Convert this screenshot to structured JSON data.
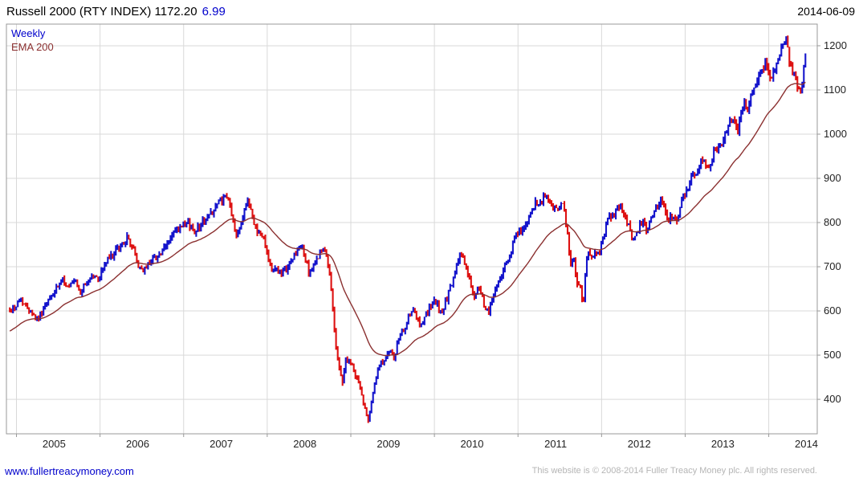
{
  "header": {
    "title": "Russell 2000 (RTY INDEX) 1172.20",
    "change": "6.99",
    "date": "2014-06-09"
  },
  "legend": {
    "timeframe": "Weekly",
    "overlay": "EMA 200"
  },
  "footer": {
    "link": "www.fullertreacymoney.com",
    "copyright": "This website is © 2008-2014 Fuller Treacy Money plc. All rights reserved."
  },
  "colors": {
    "up": "#1414cc",
    "down": "#dd1111",
    "ema": "#8b3030",
    "grid": "#d9d9d9",
    "border": "#999999",
    "text": "#222222",
    "accent_blue": "#0000cc",
    "copyright_gray": "#b5b5b5"
  },
  "chart_data": {
    "type": "candlestick",
    "title": "Russell 2000 (RTY INDEX)",
    "last": 1172.2,
    "change": 6.99,
    "as_of": "2014-06-09",
    "timeframe": "Weekly",
    "overlay": "EMA 200",
    "x_ticks": [
      2005,
      2006,
      2007,
      2008,
      2009,
      2010,
      2011,
      2012,
      2013,
      2014
    ],
    "x_label_offset": 0.45,
    "y_ticks": [
      400,
      500,
      600,
      700,
      800,
      900,
      1000,
      1100,
      1200
    ],
    "xlim": [
      2004.88,
      2014.58
    ],
    "ylim": [
      322,
      1249
    ],
    "t_start": 2004.92,
    "t_end": 2014.45,
    "grid": true,
    "legend_position": "top-left",
    "anchors": [
      [
        2004.92,
        600
      ],
      [
        2005.0,
        612
      ],
      [
        2005.06,
        630
      ],
      [
        2005.1,
        612
      ],
      [
        2005.18,
        600
      ],
      [
        2005.25,
        580
      ],
      [
        2005.32,
        602
      ],
      [
        2005.4,
        628
      ],
      [
        2005.48,
        648
      ],
      [
        2005.56,
        672
      ],
      [
        2005.62,
        650
      ],
      [
        2005.7,
        668
      ],
      [
        2005.76,
        638
      ],
      [
        2005.83,
        662
      ],
      [
        2005.9,
        680
      ],
      [
        2005.98,
        672
      ],
      [
        2006.04,
        700
      ],
      [
        2006.1,
        718
      ],
      [
        2006.17,
        730
      ],
      [
        2006.25,
        748
      ],
      [
        2006.33,
        765
      ],
      [
        2006.4,
        738
      ],
      [
        2006.46,
        700
      ],
      [
        2006.54,
        692
      ],
      [
        2006.6,
        715
      ],
      [
        2006.67,
        722
      ],
      [
        2006.75,
        732
      ],
      [
        2006.83,
        762
      ],
      [
        2006.9,
        780
      ],
      [
        2006.98,
        788
      ],
      [
        2007.06,
        800
      ],
      [
        2007.12,
        780
      ],
      [
        2007.2,
        795
      ],
      [
        2007.28,
        810
      ],
      [
        2007.36,
        832
      ],
      [
        2007.44,
        848
      ],
      [
        2007.52,
        855
      ],
      [
        2007.58,
        820
      ],
      [
        2007.62,
        768
      ],
      [
        2007.68,
        795
      ],
      [
        2007.74,
        838
      ],
      [
        2007.79,
        845
      ],
      [
        2007.84,
        800
      ],
      [
        2007.9,
        775
      ],
      [
        2007.96,
        766
      ],
      [
        2008.02,
        718
      ],
      [
        2008.06,
        688
      ],
      [
        2008.12,
        700
      ],
      [
        2008.17,
        678
      ],
      [
        2008.25,
        700
      ],
      [
        2008.33,
        730
      ],
      [
        2008.42,
        742
      ],
      [
        2008.5,
        688
      ],
      [
        2008.56,
        700
      ],
      [
        2008.62,
        730
      ],
      [
        2008.67,
        740
      ],
      [
        2008.71,
        718
      ],
      [
        2008.75,
        680
      ],
      [
        2008.79,
        600
      ],
      [
        2008.82,
        520
      ],
      [
        2008.86,
        470
      ],
      [
        2008.9,
        440
      ],
      [
        2008.94,
        490
      ],
      [
        2009.0,
        480
      ],
      [
        2009.04,
        462
      ],
      [
        2009.09,
        440
      ],
      [
        2009.13,
        410
      ],
      [
        2009.17,
        380
      ],
      [
        2009.21,
        355
      ],
      [
        2009.25,
        400
      ],
      [
        2009.29,
        438
      ],
      [
        2009.33,
        468
      ],
      [
        2009.38,
        486
      ],
      [
        2009.42,
        500
      ],
      [
        2009.48,
        506
      ],
      [
        2009.52,
        488
      ],
      [
        2009.56,
        528
      ],
      [
        2009.62,
        555
      ],
      [
        2009.67,
        572
      ],
      [
        2009.71,
        592
      ],
      [
        2009.75,
        602
      ],
      [
        2009.79,
        580
      ],
      [
        2009.83,
        568
      ],
      [
        2009.88,
        588
      ],
      [
        2009.94,
        604
      ],
      [
        2010.0,
        622
      ],
      [
        2010.04,
        612
      ],
      [
        2010.08,
        595
      ],
      [
        2010.15,
        628
      ],
      [
        2010.21,
        660
      ],
      [
        2010.27,
        700
      ],
      [
        2010.31,
        738
      ],
      [
        2010.35,
        718
      ],
      [
        2010.4,
        680
      ],
      [
        2010.44,
        662
      ],
      [
        2010.48,
        622
      ],
      [
        2010.52,
        650
      ],
      [
        2010.56,
        638
      ],
      [
        2010.6,
        608
      ],
      [
        2010.65,
        598
      ],
      [
        2010.69,
        628
      ],
      [
        2010.73,
        648
      ],
      [
        2010.77,
        672
      ],
      [
        2010.83,
        692
      ],
      [
        2010.88,
        718
      ],
      [
        2010.94,
        748
      ],
      [
        2011.0,
        782
      ],
      [
        2011.04,
        772
      ],
      [
        2011.1,
        800
      ],
      [
        2011.16,
        818
      ],
      [
        2011.21,
        842
      ],
      [
        2011.25,
        832
      ],
      [
        2011.29,
        848
      ],
      [
        2011.33,
        862
      ],
      [
        2011.4,
        838
      ],
      [
        2011.46,
        828
      ],
      [
        2011.52,
        842
      ],
      [
        2011.56,
        820
      ],
      [
        2011.6,
        758
      ],
      [
        2011.63,
        700
      ],
      [
        2011.67,
        712
      ],
      [
        2011.71,
        662
      ],
      [
        2011.75,
        648
      ],
      [
        2011.78,
        608
      ],
      [
        2011.82,
        712
      ],
      [
        2011.85,
        740
      ],
      [
        2011.88,
        718
      ],
      [
        2011.92,
        738
      ],
      [
        2011.96,
        728
      ],
      [
        2012.02,
        762
      ],
      [
        2012.06,
        798
      ],
      [
        2012.1,
        812
      ],
      [
        2012.15,
        822
      ],
      [
        2012.19,
        845
      ],
      [
        2012.23,
        832
      ],
      [
        2012.27,
        818
      ],
      [
        2012.33,
        792
      ],
      [
        2012.37,
        762
      ],
      [
        2012.42,
        775
      ],
      [
        2012.46,
        792
      ],
      [
        2012.5,
        800
      ],
      [
        2012.54,
        778
      ],
      [
        2012.58,
        808
      ],
      [
        2012.63,
        822
      ],
      [
        2012.67,
        838
      ],
      [
        2012.71,
        855
      ],
      [
        2012.75,
        832
      ],
      [
        2012.79,
        802
      ],
      [
        2012.83,
        812
      ],
      [
        2012.88,
        800
      ],
      [
        2012.92,
        822
      ],
      [
        2012.96,
        848
      ],
      [
        2013.02,
        872
      ],
      [
        2013.06,
        898
      ],
      [
        2013.1,
        912
      ],
      [
        2013.15,
        922
      ],
      [
        2013.19,
        942
      ],
      [
        2013.23,
        950
      ],
      [
        2013.27,
        918
      ],
      [
        2013.31,
        938
      ],
      [
        2013.35,
        962
      ],
      [
        2013.4,
        978
      ],
      [
        2013.44,
        970
      ],
      [
        2013.48,
        998
      ],
      [
        2013.52,
        1022
      ],
      [
        2013.56,
        1042
      ],
      [
        2013.6,
        1018
      ],
      [
        2013.63,
        1008
      ],
      [
        2013.67,
        1052
      ],
      [
        2013.71,
        1072
      ],
      [
        2013.75,
        1062
      ],
      [
        2013.79,
        1092
      ],
      [
        2013.83,
        1112
      ],
      [
        2013.87,
        1130
      ],
      [
        2013.92,
        1148
      ],
      [
        2013.96,
        1162
      ],
      [
        2014.0,
        1148
      ],
      [
        2014.04,
        1122
      ],
      [
        2014.08,
        1158
      ],
      [
        2014.12,
        1182
      ],
      [
        2014.17,
        1198
      ],
      [
        2014.21,
        1208
      ],
      [
        2014.25,
        1168
      ],
      [
        2014.29,
        1138
      ],
      [
        2014.33,
        1118
      ],
      [
        2014.37,
        1092
      ],
      [
        2014.4,
        1118
      ],
      [
        2014.44,
        1172
      ]
    ],
    "synth": {
      "seed": 42,
      "weeks_per_year": 52,
      "noise_base": 8,
      "noise_scale": 0.012,
      "wick_frac": 0.45,
      "ema_period": 40,
      "ema_start": 552
    }
  }
}
